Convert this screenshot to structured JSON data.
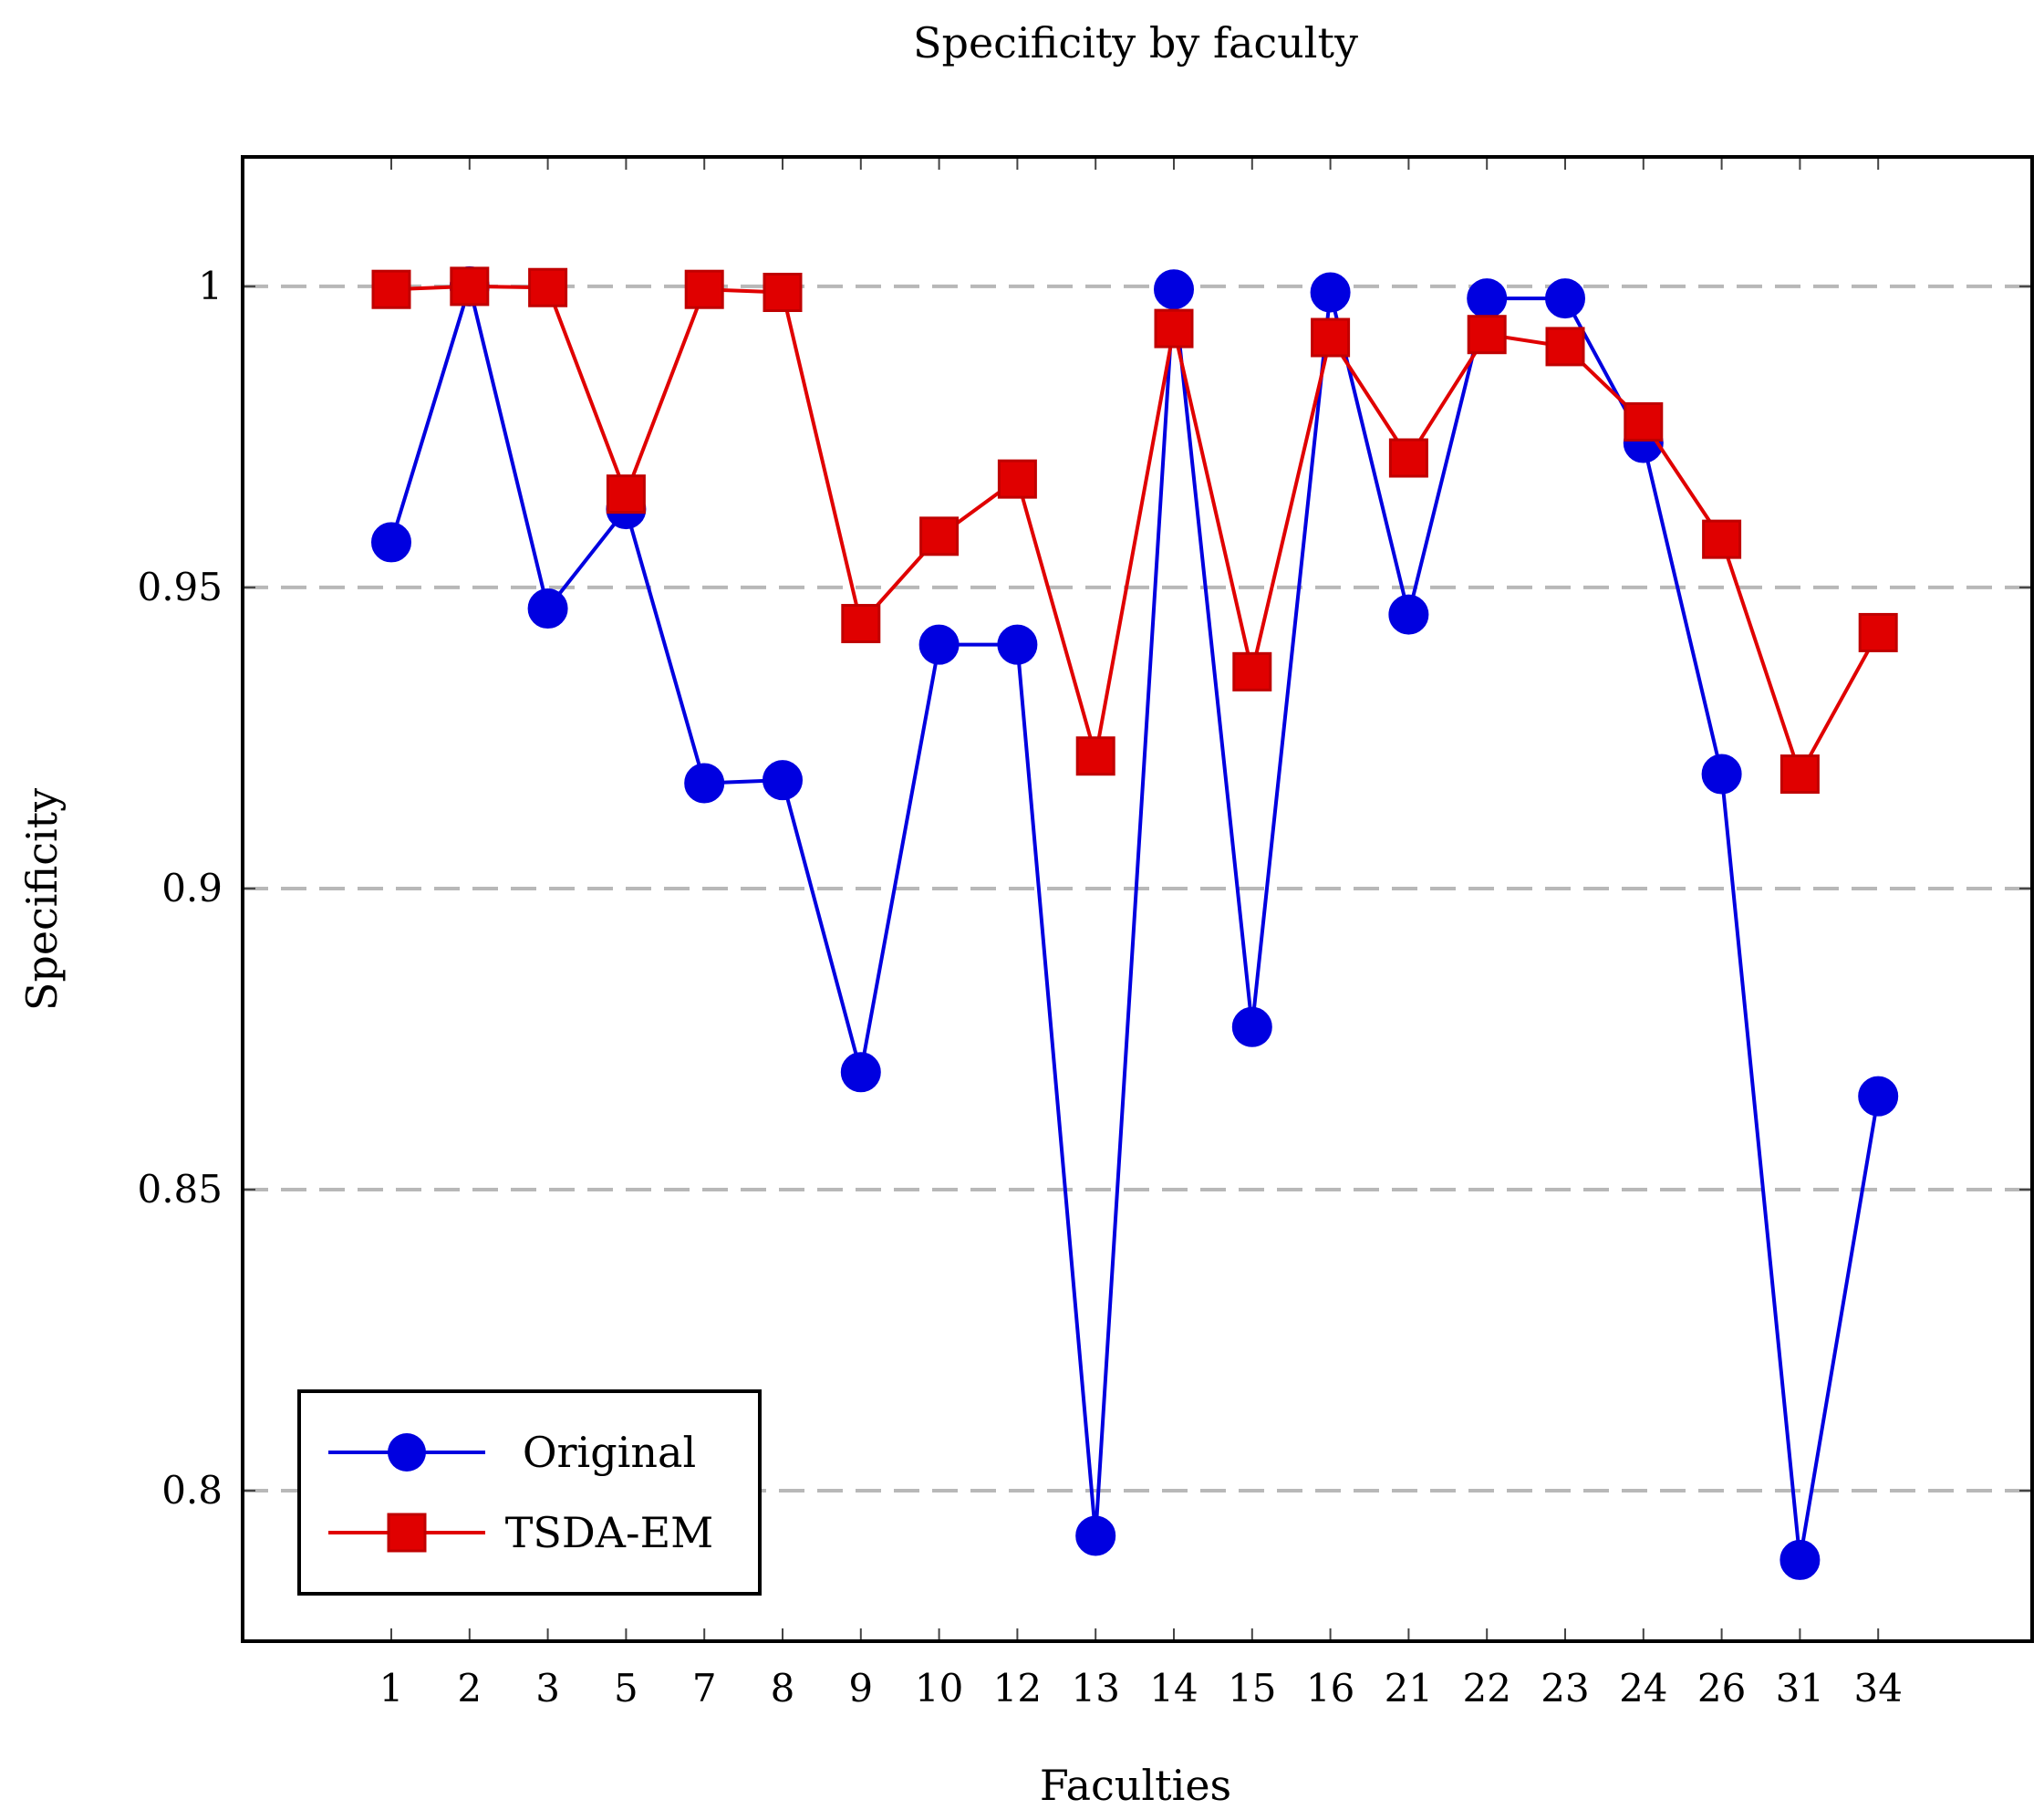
{
  "chart_data": {
    "type": "line",
    "title": "Specificity by faculty",
    "xlabel": "Faculties",
    "ylabel": "Specificity",
    "categories": [
      "1",
      "2",
      "3",
      "5",
      "7",
      "8",
      "9",
      "10",
      "12",
      "13",
      "14",
      "15",
      "16",
      "21",
      "22",
      "23",
      "24",
      "26",
      "31",
      "34"
    ],
    "ylim": [
      0.775,
      1.0215
    ],
    "yticks": [
      0.8,
      0.85,
      0.9,
      0.95,
      1
    ],
    "ytick_labels": [
      "0.8",
      "0.85",
      "0.9",
      "0.95",
      "1"
    ],
    "grid": "horizontal-dashed",
    "legend_position": "bottom-left",
    "series": [
      {
        "name": "Original",
        "color": "#0000e0",
        "marker": "circle",
        "values": [
          0.9575,
          1.0,
          0.9465,
          0.963,
          0.9175,
          0.918,
          0.8695,
          0.9405,
          0.9405,
          0.7925,
          0.9995,
          0.877,
          0.999,
          0.9455,
          0.998,
          0.998,
          0.974,
          0.919,
          0.7885,
          0.8655
        ]
      },
      {
        "name": "TSDA-EM",
        "color": "#e00000",
        "marker": "square",
        "values": [
          0.9995,
          1.0,
          0.9998,
          0.9655,
          0.9995,
          0.999,
          0.944,
          0.9585,
          0.968,
          0.922,
          0.993,
          0.936,
          0.9915,
          0.9715,
          0.992,
          0.99,
          0.9775,
          0.958,
          0.919,
          0.9425
        ]
      }
    ]
  }
}
